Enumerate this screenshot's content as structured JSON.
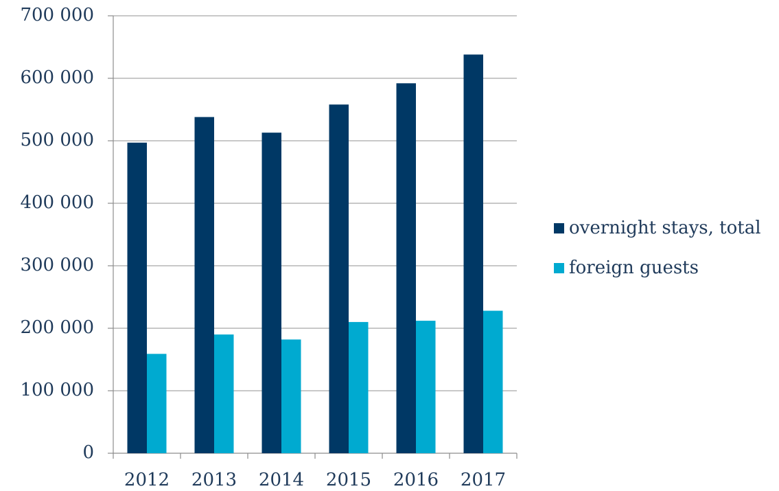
{
  "chart_data": {
    "type": "bar",
    "categories": [
      "2012",
      "2013",
      "2014",
      "2015",
      "2016",
      "2017"
    ],
    "series": [
      {
        "name": "overnight stays, total",
        "color": "#003865",
        "values": [
          497000,
          538000,
          513000,
          558000,
          592000,
          638000
        ]
      },
      {
        "name": "foreign guests",
        "color": "#00aad0",
        "values": [
          159000,
          190000,
          182000,
          210000,
          212000,
          228000
        ]
      }
    ],
    "ylim": [
      0,
      700000
    ],
    "yticks": [
      0,
      {
        "value": 100000,
        "label": "100 000"
      },
      {
        "value": 200000,
        "label": "200 000"
      },
      {
        "value": 300000,
        "label": "300 000"
      },
      {
        "value": 400000,
        "label": "400 000"
      },
      {
        "value": 500000,
        "label": "500 000"
      },
      {
        "value": 600000,
        "label": "600 000"
      },
      {
        "value": 700000,
        "label": "700 000"
      }
    ],
    "grid": true,
    "legend": "right"
  }
}
